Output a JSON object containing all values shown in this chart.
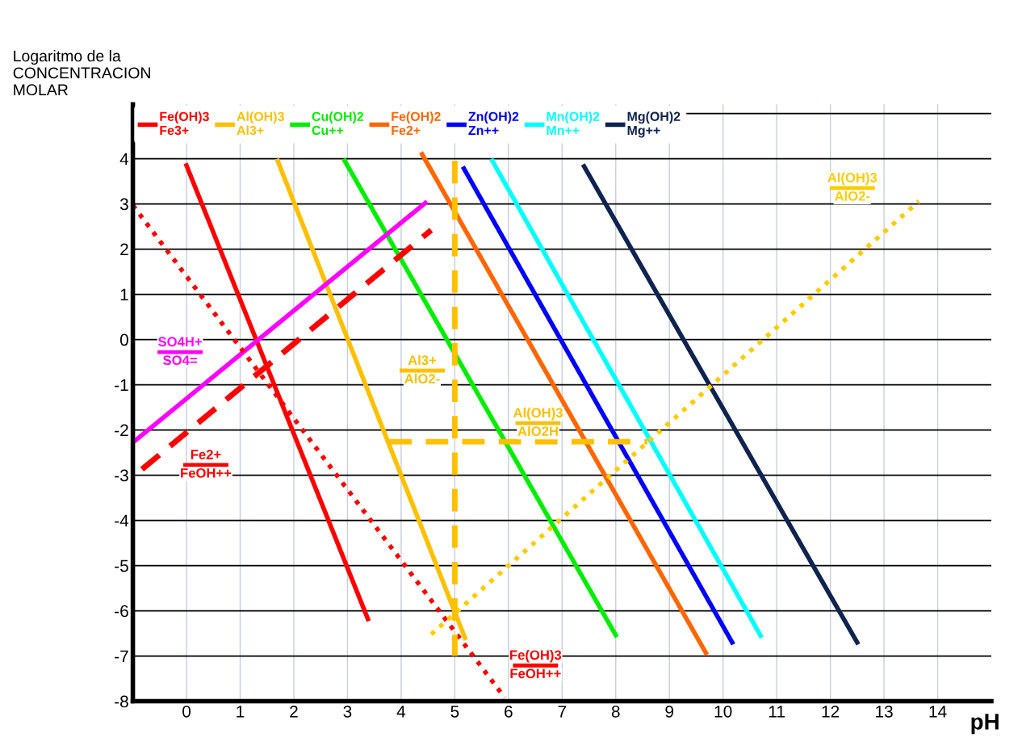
{
  "chart_data": {
    "type": "line",
    "xlabel": "pH",
    "ylabel": "Logaritmo de la\nCONCENTRACION\nMOLAR",
    "xlim": [
      -1,
      15
    ],
    "ylim": [
      -8,
      5.2
    ],
    "xticks": [
      0,
      1,
      2,
      3,
      4,
      5,
      6,
      7,
      8,
      9,
      10,
      11,
      12,
      13,
      14
    ],
    "yticks": [
      -8,
      -7,
      -6,
      -5,
      -4,
      -3,
      -2,
      -1,
      0,
      1,
      2,
      3,
      4,
      {
        "value": 5,
        "label": null
      }
    ],
    "grid": true,
    "line_style": "solid",
    "legend": "top",
    "series": [
      {
        "type": "line",
        "name": "Fe(OH)3\nFe3+",
        "color": "#ff0000",
        "x": [
          0,
          3.38
        ],
        "values": [
          3.85,
          -6.18
        ]
      },
      {
        "type": "line",
        "name": "Al(OH)3\nAl3+",
        "color": "#ffc000",
        "x": [
          1.7,
          5.19
        ],
        "values": [
          3.95,
          -6.6
        ]
      },
      {
        "type": "line",
        "name": "Cu(OH)2\nCu++",
        "color": "#00ee00",
        "x": [
          2.95,
          8.0
        ],
        "values": [
          3.95,
          -6.54
        ]
      },
      {
        "type": "line",
        "name": "Fe(OH)2\nFe2+",
        "color": "#ff6600",
        "x": [
          4.39,
          9.68
        ],
        "values": [
          4.1,
          -6.93
        ]
      },
      {
        "type": "line",
        "name": "Zn(OH)2\nZn++",
        "color": "#0000ff",
        "x": [
          5.17,
          10.17
        ],
        "values": [
          3.78,
          -6.7
        ]
      },
      {
        "type": "line",
        "name": "Mn(OH)2\nMn++",
        "color": "#00ffff",
        "x": [
          5.7,
          10.7
        ],
        "values": [
          3.95,
          -6.55
        ]
      },
      {
        "type": "line",
        "name": "Mg(OH)2\nMg++",
        "color": "#0f2350",
        "x": [
          7.41,
          12.5
        ],
        "values": [
          3.83,
          -6.7
        ]
      },
      {
        "type": "line",
        "name": "SO4H+\nSO4=",
        "color": "#ff00ff",
        "x": [
          -0.95,
          4.45
        ],
        "values": [
          -2.23,
          3.02
        ]
      },
      {
        "type": "line",
        "name": "Fe2+\nFeOH++",
        "color": "#ff0000",
        "line_style": "dashed",
        "x": [
          -0.83,
          4.56
        ],
        "values": [
          -2.87,
          2.42
        ]
      },
      {
        "type": "line",
        "name": "Fe(OH)3\nFeOH++",
        "color": "#ff0000",
        "line_style": "dotted",
        "x": [
          -1.0,
          5.93
        ],
        "values": [
          2.97,
          -7.92
        ]
      },
      {
        "type": "line",
        "name": "Al(OH)3\nAlO2-",
        "color": "#ffcc00",
        "line_style": "dotted",
        "x": [
          4.56,
          13.65
        ],
        "values": [
          -6.52,
          3.06
        ]
      },
      {
        "type": "line",
        "name": "Al3+\nAlO2-",
        "color": "#ffc000",
        "line_style": "dashed",
        "x": [
          5,
          5
        ],
        "values": [
          3.95,
          -7.0
        ]
      },
      {
        "type": "line",
        "name": "Al(OH)3\nAlO2H",
        "color": "#ffc000",
        "line_style": "dashed",
        "x": [
          3.78,
          8.59
        ],
        "values": [
          -2.26,
          -2.26
        ]
      }
    ]
  }
}
